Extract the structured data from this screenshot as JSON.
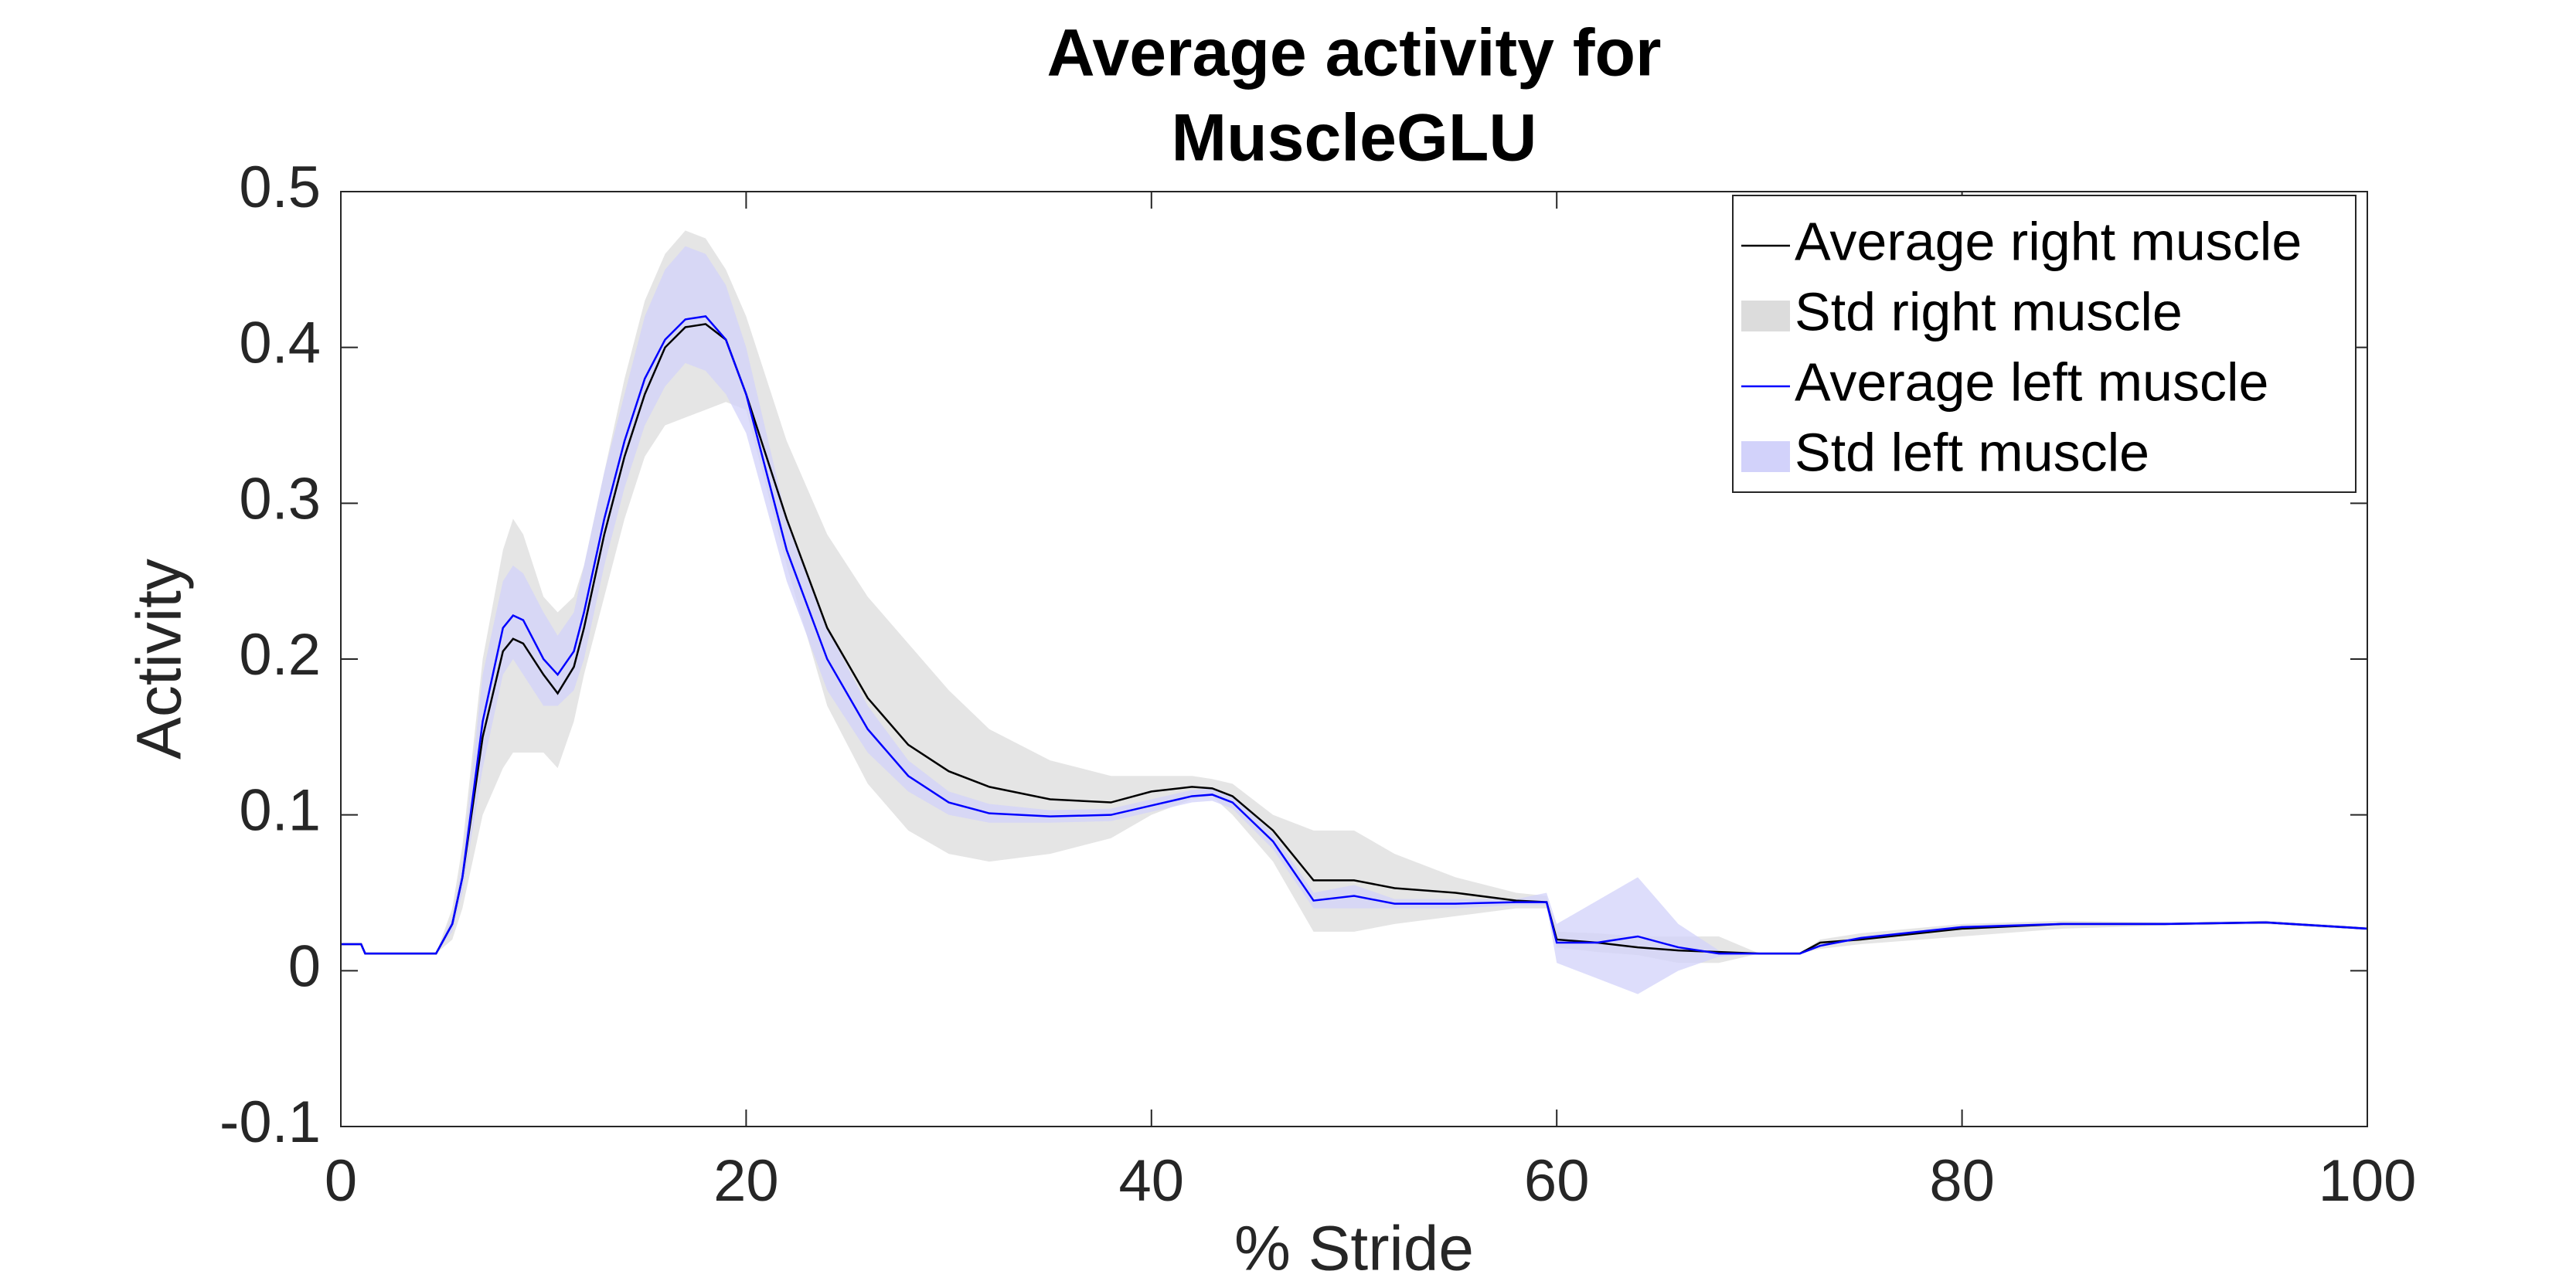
{
  "chart_data": {
    "type": "line",
    "title": [
      "Average activity for",
      "MuscleGLU"
    ],
    "xlabel": "% Stride",
    "ylabel": "Activity",
    "xlim": [
      0,
      100
    ],
    "ylim": [
      -0.1,
      0.5
    ],
    "xticks": [
      0,
      20,
      40,
      60,
      80,
      100
    ],
    "yticks": [
      -0.1,
      0,
      0.1,
      0.2,
      0.3,
      0.4,
      0.5
    ],
    "grid": false,
    "legend": "northeast",
    "x": [
      0,
      1,
      1.2,
      4.7,
      5.5,
      6,
      7,
      8,
      8.5,
      9,
      10,
      10.7,
      11.5,
      12,
      13,
      14,
      15,
      16,
      17,
      18,
      19,
      20,
      22,
      24,
      26,
      28,
      30,
      32,
      35,
      38,
      40,
      42,
      43,
      44,
      46,
      48,
      50,
      52,
      55,
      58,
      59.5,
      60,
      62,
      64,
      66,
      68,
      70,
      72,
      73,
      75,
      80,
      85,
      90,
      95,
      100
    ],
    "series": [
      {
        "name": "Average right muscle",
        "kind": "line",
        "color": "#000000",
        "values": [
          0.017,
          0.017,
          0.011,
          0.011,
          0.03,
          0.06,
          0.15,
          0.205,
          0.213,
          0.21,
          0.19,
          0.178,
          0.195,
          0.22,
          0.28,
          0.33,
          0.37,
          0.4,
          0.413,
          0.415,
          0.405,
          0.37,
          0.29,
          0.22,
          0.175,
          0.145,
          0.128,
          0.118,
          0.11,
          0.108,
          0.115,
          0.118,
          0.117,
          0.112,
          0.09,
          0.058,
          0.058,
          0.053,
          0.05,
          0.045,
          0.044,
          0.02,
          0.018,
          0.015,
          0.013,
          0.012,
          0.011,
          0.011,
          0.018,
          0.02,
          0.027,
          0.03,
          0.03,
          0.031,
          0.027
        ]
      },
      {
        "name": "Std right muscle",
        "kind": "band",
        "color": "#dcdcdc",
        "lower": [
          0.017,
          0.017,
          0.011,
          0.011,
          0.02,
          0.04,
          0.1,
          0.13,
          0.14,
          0.14,
          0.14,
          0.13,
          0.16,
          0.19,
          0.24,
          0.29,
          0.33,
          0.35,
          0.355,
          0.36,
          0.365,
          0.36,
          0.26,
          0.17,
          0.12,
          0.09,
          0.075,
          0.07,
          0.075,
          0.085,
          0.1,
          0.11,
          0.112,
          0.1,
          0.07,
          0.025,
          0.025,
          0.03,
          0.035,
          0.04,
          0.04,
          0.015,
          0.012,
          0.01,
          0.005,
          0.005,
          0.011,
          0.011,
          0.014,
          0.017,
          0.022,
          0.027,
          0.029,
          0.03,
          0.026
        ],
        "upper": [
          0.017,
          0.017,
          0.011,
          0.011,
          0.04,
          0.08,
          0.2,
          0.27,
          0.29,
          0.28,
          0.24,
          0.23,
          0.24,
          0.26,
          0.32,
          0.38,
          0.43,
          0.46,
          0.475,
          0.47,
          0.45,
          0.42,
          0.34,
          0.28,
          0.24,
          0.21,
          0.18,
          0.155,
          0.135,
          0.125,
          0.125,
          0.125,
          0.123,
          0.12,
          0.1,
          0.09,
          0.09,
          0.075,
          0.06,
          0.05,
          0.048,
          0.025,
          0.024,
          0.022,
          0.022,
          0.022,
          0.011,
          0.011,
          0.02,
          0.024,
          0.03,
          0.032,
          0.031,
          0.032,
          0.028
        ]
      },
      {
        "name": "Average left muscle",
        "kind": "line",
        "color": "#0000ff",
        "values": [
          0.017,
          0.017,
          0.011,
          0.011,
          0.03,
          0.06,
          0.16,
          0.22,
          0.228,
          0.225,
          0.2,
          0.19,
          0.205,
          0.23,
          0.29,
          0.34,
          0.38,
          0.405,
          0.418,
          0.42,
          0.405,
          0.37,
          0.27,
          0.2,
          0.155,
          0.125,
          0.108,
          0.101,
          0.099,
          0.1,
          0.106,
          0.112,
          0.113,
          0.108,
          0.083,
          0.045,
          0.048,
          0.043,
          0.043,
          0.044,
          0.044,
          0.018,
          0.018,
          0.022,
          0.015,
          0.011,
          0.011,
          0.011,
          0.016,
          0.021,
          0.028,
          0.03,
          0.03,
          0.031,
          0.027
        ]
      },
      {
        "name": "Std left muscle",
        "kind": "band",
        "color": "#d2d2fa",
        "lower": [
          0.017,
          0.017,
          0.011,
          0.011,
          0.025,
          0.05,
          0.13,
          0.19,
          0.2,
          0.19,
          0.17,
          0.17,
          0.18,
          0.2,
          0.26,
          0.31,
          0.35,
          0.375,
          0.39,
          0.385,
          0.37,
          0.345,
          0.25,
          0.18,
          0.14,
          0.115,
          0.1,
          0.095,
          0.095,
          0.096,
          0.102,
          0.108,
          0.109,
          0.104,
          0.078,
          0.04,
          0.04,
          0.04,
          0.04,
          0.042,
          0.042,
          0.005,
          -0.005,
          -0.015,
          0.0,
          0.009,
          0.011,
          0.011,
          0.015,
          0.02,
          0.027,
          0.029,
          0.029,
          0.03,
          0.026
        ],
        "upper": [
          0.017,
          0.017,
          0.011,
          0.011,
          0.035,
          0.07,
          0.19,
          0.25,
          0.26,
          0.255,
          0.23,
          0.215,
          0.23,
          0.26,
          0.32,
          0.37,
          0.42,
          0.45,
          0.465,
          0.46,
          0.44,
          0.4,
          0.29,
          0.22,
          0.17,
          0.135,
          0.115,
          0.107,
          0.103,
          0.104,
          0.11,
          0.116,
          0.117,
          0.112,
          0.088,
          0.05,
          0.055,
          0.046,
          0.046,
          0.046,
          0.05,
          0.03,
          0.045,
          0.06,
          0.03,
          0.013,
          0.011,
          0.011,
          0.017,
          0.022,
          0.029,
          0.031,
          0.031,
          0.032,
          0.028
        ]
      }
    ]
  }
}
